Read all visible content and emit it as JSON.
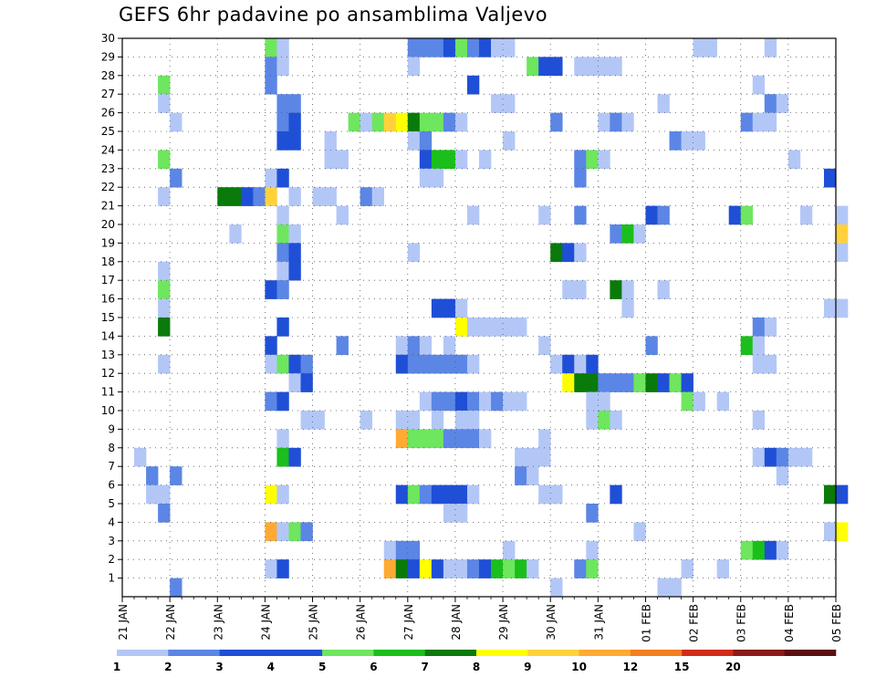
{
  "title": "GEFS 6hr padavine po ansamblima Valjevo",
  "chart_data": {
    "type": "heatmap",
    "title": "GEFS 6hr padavine po ansamblima Valjevo",
    "xlabel": "",
    "ylabel": "",
    "x_ticks": [
      "21 JAN",
      "22 JAN",
      "23 JAN",
      "24 JAN",
      "25 JAN",
      "26 JAN",
      "27 JAN",
      "28 JAN",
      "29 JAN",
      "30 JAN",
      "31 JAN",
      "01 FEB",
      "02 FEB",
      "03 FEB",
      "04 FEB",
      "05 FEB"
    ],
    "y_ticks": [
      1,
      2,
      3,
      4,
      5,
      6,
      7,
      8,
      9,
      10,
      11,
      12,
      13,
      14,
      15,
      16,
      17,
      18,
      19,
      20,
      21,
      22,
      23,
      24,
      25,
      26,
      27,
      28,
      29,
      30
    ],
    "x_range": [
      "21 JAN",
      "05 FEB"
    ],
    "time_step_hours": 6,
    "y_range": [
      0,
      30
    ],
    "grid": true,
    "colorbar": {
      "labels": [
        "1",
        "2",
        "3",
        "4",
        "5",
        "6",
        "7",
        "8",
        "9",
        "10",
        "12",
        "15",
        "20"
      ],
      "colors": [
        "#b3c7f7",
        "#5b86e5",
        "#1f4fd6",
        "#1f4fd6",
        "#6ee65e",
        "#1bbf1b",
        "#0a7a0a",
        "#ffff00",
        "#ffd23c",
        "#ffaa33",
        "#f47f20",
        "#d22b1a",
        "#8b1a1a",
        "#5c0f0f"
      ]
    },
    "cells": [
      {
        "m": 30,
        "v": [
          [
            12,
            5
          ],
          [
            13,
            1
          ],
          [
            24,
            2
          ],
          [
            25,
            2
          ],
          [
            26,
            2
          ],
          [
            27,
            4
          ],
          [
            28,
            5
          ],
          [
            29,
            2
          ],
          [
            30,
            3
          ],
          [
            31,
            1
          ],
          [
            32,
            1
          ],
          [
            48,
            1
          ],
          [
            49,
            1
          ],
          [
            54,
            1
          ]
        ]
      },
      {
        "m": 29,
        "v": [
          [
            12,
            2
          ],
          [
            13,
            1
          ],
          [
            24,
            1
          ],
          [
            34,
            5
          ],
          [
            35,
            3
          ],
          [
            36,
            3
          ],
          [
            38,
            1
          ],
          [
            39,
            1
          ],
          [
            40,
            1
          ],
          [
            41,
            1
          ]
        ]
      },
      {
        "m": 28,
        "v": [
          [
            3,
            5
          ],
          [
            12,
            2
          ],
          [
            29,
            3
          ],
          [
            53,
            1
          ]
        ]
      },
      {
        "m": 27,
        "v": [
          [
            3,
            1
          ],
          [
            13,
            2
          ],
          [
            14,
            2
          ],
          [
            31,
            1
          ],
          [
            32,
            1
          ],
          [
            45,
            1
          ],
          [
            54,
            2
          ],
          [
            55,
            1
          ]
        ]
      },
      {
        "m": 26,
        "v": [
          [
            4,
            1
          ],
          [
            13,
            2
          ],
          [
            14,
            3
          ],
          [
            19,
            5
          ],
          [
            20,
            1
          ],
          [
            21,
            5
          ],
          [
            22,
            9
          ],
          [
            23,
            8
          ],
          [
            24,
            7
          ],
          [
            25,
            5
          ],
          [
            26,
            5
          ],
          [
            27,
            2
          ],
          [
            28,
            1
          ],
          [
            36,
            2
          ],
          [
            40,
            1
          ],
          [
            41,
            2
          ],
          [
            42,
            1
          ],
          [
            52,
            2
          ],
          [
            53,
            1
          ],
          [
            54,
            1
          ]
        ]
      },
      {
        "m": 25,
        "v": [
          [
            13,
            3
          ],
          [
            14,
            3
          ],
          [
            17,
            1
          ],
          [
            24,
            1
          ],
          [
            25,
            2
          ],
          [
            32,
            1
          ],
          [
            46,
            2
          ],
          [
            47,
            1
          ],
          [
            48,
            1
          ]
        ]
      },
      {
        "m": 24,
        "v": [
          [
            3,
            5
          ],
          [
            17,
            1
          ],
          [
            18,
            1
          ],
          [
            25,
            3
          ],
          [
            26,
            6
          ],
          [
            27,
            6
          ],
          [
            28,
            1
          ],
          [
            30,
            1
          ],
          [
            38,
            2
          ],
          [
            39,
            5
          ],
          [
            40,
            1
          ],
          [
            56,
            1
          ]
        ]
      },
      {
        "m": 23,
        "v": [
          [
            4,
            2
          ],
          [
            12,
            1
          ],
          [
            13,
            3
          ],
          [
            25,
            1
          ],
          [
            26,
            1
          ],
          [
            38,
            2
          ],
          [
            59,
            3
          ]
        ]
      },
      {
        "m": 22,
        "v": [
          [
            3,
            1
          ],
          [
            8,
            7
          ],
          [
            9,
            7
          ],
          [
            10,
            3
          ],
          [
            11,
            2
          ],
          [
            12,
            9
          ],
          [
            14,
            1
          ],
          [
            16,
            1
          ],
          [
            17,
            1
          ],
          [
            20,
            2
          ],
          [
            21,
            1
          ]
        ]
      },
      {
        "m": 21,
        "v": [
          [
            13,
            1
          ],
          [
            18,
            1
          ],
          [
            29,
            1
          ],
          [
            35,
            1
          ],
          [
            38,
            2
          ],
          [
            44,
            3
          ],
          [
            45,
            2
          ],
          [
            51,
            3
          ],
          [
            52,
            5
          ],
          [
            57,
            1
          ],
          [
            60,
            1
          ]
        ]
      },
      {
        "m": 20,
        "v": [
          [
            9,
            1
          ],
          [
            13,
            5
          ],
          [
            14,
            1
          ],
          [
            41,
            2
          ],
          [
            42,
            6
          ],
          [
            43,
            1
          ],
          [
            60,
            9
          ]
        ]
      },
      {
        "m": 19,
        "v": [
          [
            13,
            2
          ],
          [
            14,
            3
          ],
          [
            24,
            1
          ],
          [
            36,
            7
          ],
          [
            37,
            3
          ],
          [
            38,
            1
          ],
          [
            60,
            1
          ]
        ]
      },
      {
        "m": 18,
        "v": [
          [
            3,
            1
          ],
          [
            13,
            1
          ],
          [
            14,
            3
          ]
        ]
      },
      {
        "m": 17,
        "v": [
          [
            3,
            5
          ],
          [
            12,
            3
          ],
          [
            13,
            2
          ],
          [
            37,
            1
          ],
          [
            38,
            1
          ],
          [
            41,
            7
          ],
          [
            42,
            1
          ],
          [
            45,
            1
          ]
        ]
      },
      {
        "m": 16,
        "v": [
          [
            3,
            1
          ],
          [
            26,
            3
          ],
          [
            27,
            3
          ],
          [
            28,
            1
          ],
          [
            42,
            1
          ],
          [
            59,
            1
          ],
          [
            60,
            1
          ]
        ]
      },
      {
        "m": 15,
        "v": [
          [
            3,
            7
          ],
          [
            13,
            3
          ],
          [
            28,
            8
          ],
          [
            29,
            1
          ],
          [
            30,
            1
          ],
          [
            31,
            1
          ],
          [
            32,
            1
          ],
          [
            33,
            1
          ],
          [
            53,
            2
          ],
          [
            54,
            1
          ]
        ]
      },
      {
        "m": 14,
        "v": [
          [
            12,
            3
          ],
          [
            18,
            2
          ],
          [
            23,
            1
          ],
          [
            24,
            2
          ],
          [
            25,
            1
          ],
          [
            27,
            1
          ],
          [
            35,
            1
          ],
          [
            44,
            2
          ],
          [
            52,
            6
          ],
          [
            53,
            1
          ]
        ]
      },
      {
        "m": 13,
        "v": [
          [
            3,
            1
          ],
          [
            12,
            1
          ],
          [
            13,
            5
          ],
          [
            14,
            3
          ],
          [
            15,
            2
          ],
          [
            23,
            3
          ],
          [
            24,
            2
          ],
          [
            25,
            2
          ],
          [
            26,
            2
          ],
          [
            27,
            2
          ],
          [
            28,
            2
          ],
          [
            29,
            1
          ],
          [
            36,
            1
          ],
          [
            37,
            3
          ],
          [
            38,
            1
          ],
          [
            39,
            3
          ],
          [
            53,
            1
          ],
          [
            54,
            1
          ]
        ]
      },
      {
        "m": 12,
        "v": [
          [
            14,
            1
          ],
          [
            15,
            3
          ],
          [
            37,
            8
          ],
          [
            38,
            7
          ],
          [
            39,
            7
          ],
          [
            40,
            2
          ],
          [
            41,
            2
          ],
          [
            42,
            2
          ],
          [
            43,
            5
          ],
          [
            44,
            7
          ],
          [
            45,
            3
          ],
          [
            46,
            5
          ],
          [
            47,
            3
          ]
        ]
      },
      {
        "m": 11,
        "v": [
          [
            12,
            2
          ],
          [
            13,
            3
          ],
          [
            25,
            1
          ],
          [
            26,
            2
          ],
          [
            27,
            2
          ],
          [
            28,
            3
          ],
          [
            29,
            2
          ],
          [
            30,
            1
          ],
          [
            31,
            2
          ],
          [
            32,
            1
          ],
          [
            33,
            1
          ],
          [
            39,
            1
          ],
          [
            40,
            1
          ],
          [
            47,
            5
          ],
          [
            48,
            1
          ],
          [
            50,
            1
          ]
        ]
      },
      {
        "m": 10,
        "v": [
          [
            15,
            1
          ],
          [
            16,
            1
          ],
          [
            20,
            1
          ],
          [
            23,
            1
          ],
          [
            24,
            1
          ],
          [
            26,
            1
          ],
          [
            28,
            1
          ],
          [
            29,
            1
          ],
          [
            39,
            1
          ],
          [
            40,
            5
          ],
          [
            41,
            1
          ],
          [
            53,
            1
          ]
        ]
      },
      {
        "m": 9,
        "v": [
          [
            13,
            1
          ],
          [
            23,
            10
          ],
          [
            24,
            5
          ],
          [
            25,
            5
          ],
          [
            26,
            5
          ],
          [
            27,
            2
          ],
          [
            28,
            2
          ],
          [
            29,
            2
          ],
          [
            30,
            1
          ],
          [
            35,
            1
          ]
        ]
      },
      {
        "m": 8,
        "v": [
          [
            1,
            1
          ],
          [
            13,
            6
          ],
          [
            14,
            3
          ],
          [
            33,
            1
          ],
          [
            34,
            1
          ],
          [
            35,
            1
          ],
          [
            53,
            1
          ],
          [
            54,
            3
          ],
          [
            55,
            2
          ],
          [
            56,
            1
          ],
          [
            57,
            1
          ]
        ]
      },
      {
        "m": 7,
        "v": [
          [
            2,
            2
          ],
          [
            4,
            2
          ],
          [
            33,
            2
          ],
          [
            34,
            1
          ],
          [
            55,
            1
          ]
        ]
      },
      {
        "m": 6,
        "v": [
          [
            2,
            1
          ],
          [
            3,
            1
          ],
          [
            12,
            8
          ],
          [
            13,
            1
          ],
          [
            23,
            3
          ],
          [
            24,
            5
          ],
          [
            25,
            2
          ],
          [
            26,
            3
          ],
          [
            27,
            3
          ],
          [
            28,
            3
          ],
          [
            29,
            1
          ],
          [
            35,
            1
          ],
          [
            36,
            1
          ],
          [
            41,
            3
          ],
          [
            59,
            7
          ],
          [
            60,
            3
          ]
        ]
      },
      {
        "m": 5,
        "v": [
          [
            3,
            2
          ],
          [
            27,
            1
          ],
          [
            28,
            1
          ],
          [
            39,
            2
          ]
        ]
      },
      {
        "m": 4,
        "v": [
          [
            12,
            10
          ],
          [
            13,
            1
          ],
          [
            14,
            5
          ],
          [
            15,
            2
          ],
          [
            43,
            1
          ],
          [
            59,
            1
          ],
          [
            60,
            8
          ]
        ]
      },
      {
        "m": 3,
        "v": [
          [
            22,
            1
          ],
          [
            23,
            2
          ],
          [
            24,
            2
          ],
          [
            32,
            1
          ],
          [
            39,
            1
          ],
          [
            52,
            5
          ],
          [
            53,
            6
          ],
          [
            54,
            3
          ],
          [
            55,
            1
          ]
        ]
      },
      {
        "m": 2,
        "v": [
          [
            12,
            1
          ],
          [
            13,
            3
          ],
          [
            22,
            10
          ],
          [
            23,
            7
          ],
          [
            24,
            3
          ],
          [
            25,
            8
          ],
          [
            26,
            3
          ],
          [
            27,
            1
          ],
          [
            28,
            1
          ],
          [
            29,
            2
          ],
          [
            30,
            3
          ],
          [
            31,
            6
          ],
          [
            32,
            5
          ],
          [
            33,
            6
          ],
          [
            34,
            1
          ],
          [
            38,
            2
          ],
          [
            39,
            5
          ],
          [
            47,
            1
          ],
          [
            50,
            1
          ]
        ]
      },
      {
        "m": 1,
        "v": [
          [
            4,
            2
          ],
          [
            36,
            1
          ],
          [
            45,
            1
          ],
          [
            46,
            1
          ]
        ]
      }
    ]
  }
}
